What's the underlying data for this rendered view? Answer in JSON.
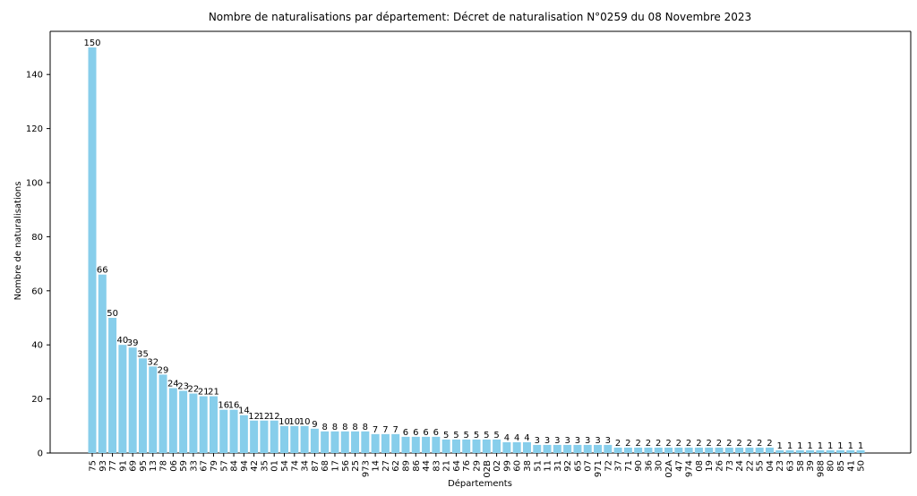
{
  "chart_data": {
    "type": "bar",
    "title": "Nombre de naturalisations par département: Décret de naturalisation N°0259 du 08 Novembre 2023",
    "xlabel": "Départements",
    "ylabel": "Nombre de naturalisations",
    "ylim": [
      0,
      150
    ],
    "yticks": [
      0,
      20,
      40,
      60,
      80,
      100,
      120,
      140
    ],
    "grid": false,
    "bar_color": "#87ceeb",
    "categories": [
      "75",
      "93",
      "77",
      "91",
      "69",
      "95",
      "13",
      "78",
      "06",
      "59",
      "33",
      "67",
      "79",
      "57",
      "84",
      "94",
      "42",
      "35",
      "01",
      "54",
      "74",
      "34",
      "87",
      "68",
      "17",
      "56",
      "25",
      "973",
      "14",
      "27",
      "62",
      "89",
      "86",
      "44",
      "83",
      "21",
      "64",
      "76",
      "29",
      "02B",
      "02",
      "99",
      "60",
      "38",
      "51",
      "11",
      "31",
      "92",
      "65",
      "07",
      "971",
      "72",
      "37",
      "71",
      "90",
      "36",
      "30",
      "02A",
      "47",
      "974",
      "08",
      "19",
      "26",
      "73",
      "24",
      "22",
      "55",
      "04",
      "23",
      "63",
      "58",
      "39",
      "988",
      "80",
      "85",
      "41",
      "50"
    ],
    "values": [
      150,
      66,
      50,
      40,
      39,
      35,
      32,
      29,
      24,
      23,
      22,
      21,
      21,
      16,
      16,
      14,
      12,
      12,
      12,
      10,
      10,
      10,
      9,
      8,
      8,
      8,
      8,
      8,
      7,
      7,
      7,
      6,
      6,
      6,
      6,
      5,
      5,
      5,
      5,
      5,
      5,
      4,
      4,
      4,
      3,
      3,
      3,
      3,
      3,
      3,
      3,
      3,
      2,
      2,
      2,
      2,
      2,
      2,
      2,
      2,
      2,
      2,
      2,
      2,
      2,
      2,
      2,
      2,
      1,
      1,
      1,
      1,
      1,
      1,
      1,
      1,
      1
    ]
  }
}
